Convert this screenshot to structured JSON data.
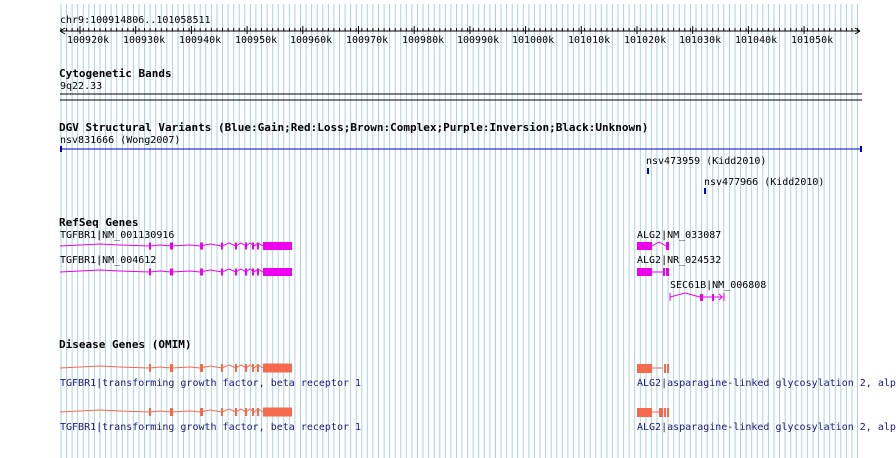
{
  "ruler": {
    "coordinate_label": "chr9:100914806..101058511",
    "ticks": [
      "100920k",
      "100930k",
      "100940k",
      "100950k",
      "100960k",
      "100970k",
      "100980k",
      "100990k",
      "101000k",
      "101010k",
      "101020k",
      "101030k",
      "101040k",
      "101050k"
    ]
  },
  "colors": {
    "grid": "#aad3dd",
    "refseq": "#ee00ee",
    "omim": "#f5694f",
    "dgv": "#0000cc",
    "text_link": "#1a1a7a"
  },
  "tracks": {
    "cytoband": {
      "title": "Cytogenetic Bands",
      "band": "9q22.33"
    },
    "dgv": {
      "title": "DGV Structural Variants (Blue:Gain;Red:Loss;Brown:Complex;Purple:Inversion;Black:Unknown)",
      "features": [
        {
          "label": "nsv831666 (Wong2007)"
        },
        {
          "label": "nsv473959 (Kidd2010)"
        },
        {
          "label": "nsv477966 (Kidd2010)"
        }
      ]
    },
    "refseq": {
      "title": "RefSeq Genes",
      "features": [
        {
          "label": "TGFBR1|NM_001130916",
          "icon": "gene-model-icon"
        },
        {
          "label": "TGFBR1|NM_004612",
          "icon": "gene-model-icon"
        },
        {
          "label": "ALG2|NM_033087",
          "icon": "gene-model-icon"
        },
        {
          "label": "ALG2|NR_024532",
          "icon": "gene-model-icon"
        },
        {
          "label": "SEC61B|NM_006808",
          "icon": "gene-model-icon"
        }
      ]
    },
    "omim": {
      "title": "Disease Genes (OMIM)",
      "features": [
        {
          "label": "TGFBR1|transforming growth factor, beta receptor 1"
        },
        {
          "label": "ALG2|asparagine-linked glycosylation 2, alp"
        },
        {
          "label": "TGFBR1|transforming growth factor, beta receptor 1"
        },
        {
          "label": "ALG2|asparagine-linked glycosylation 2, alp"
        }
      ]
    }
  }
}
